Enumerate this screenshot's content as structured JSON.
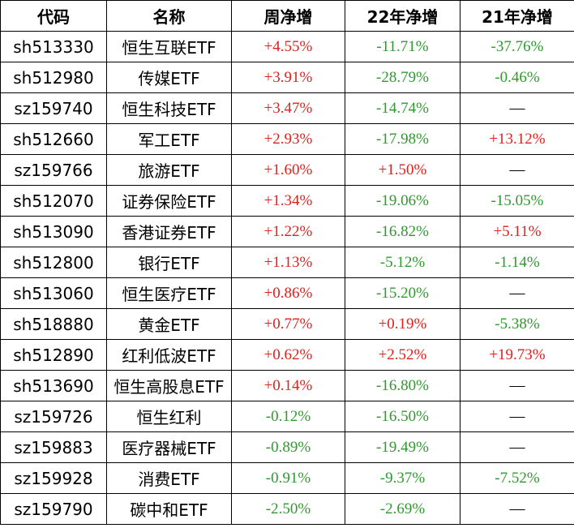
{
  "table": {
    "header": [
      "代码",
      "名称",
      "周净增",
      "22年净增",
      "21年净增"
    ],
    "rows": [
      [
        "sh513330",
        "恒生互联ETF",
        "+4.55%",
        "-11.71%",
        "-37.76%"
      ],
      [
        "sh512980",
        "传媒ETF",
        "+3.91%",
        "-28.79%",
        "-0.46%"
      ],
      [
        "sz159740",
        "恒生科技ETF",
        "+3.47%",
        "-14.74%",
        "—"
      ],
      [
        "sh512660",
        "军工ETF",
        "+2.93%",
        "-17.98%",
        "+13.12%"
      ],
      [
        "sz159766",
        "旅游ETF",
        "+1.60%",
        "+1.50%",
        "—"
      ],
      [
        "sh512070",
        "证券保险ETF",
        "+1.34%",
        "-19.06%",
        "-15.05%"
      ],
      [
        "sh513090",
        "香港证券ETF",
        "+1.22%",
        "-16.82%",
        "+5.11%"
      ],
      [
        "sh512800",
        "银行ETF",
        "+1.13%",
        "-5.12%",
        "-1.14%"
      ],
      [
        "sh513060",
        "恒生医疗ETF",
        "+0.86%",
        "-15.20%",
        "—"
      ],
      [
        "sh518880",
        "黄金ETF",
        "+0.77%",
        "+0.19%",
        "-5.38%"
      ],
      [
        "sh512890",
        "红利低波ETF",
        "+0.62%",
        "+2.52%",
        "+19.73%"
      ],
      [
        "sh513690",
        "恒生高股息ETF",
        "+0.14%",
        "-16.80%",
        "—"
      ],
      [
        "sz159726",
        "恒生红利",
        "-0.12%",
        "-16.50%",
        "—"
      ],
      [
        "sz159883",
        "医疗器械ETF",
        "-0.89%",
        "-19.49%",
        "—"
      ],
      [
        "sz159928",
        "消费ETF",
        "-0.91%",
        "-9.37%",
        "-7.52%"
      ],
      [
        "sz159790",
        "碳中和ETF",
        "-2.50%",
        "-2.69%",
        "—"
      ]
    ]
  }
}
